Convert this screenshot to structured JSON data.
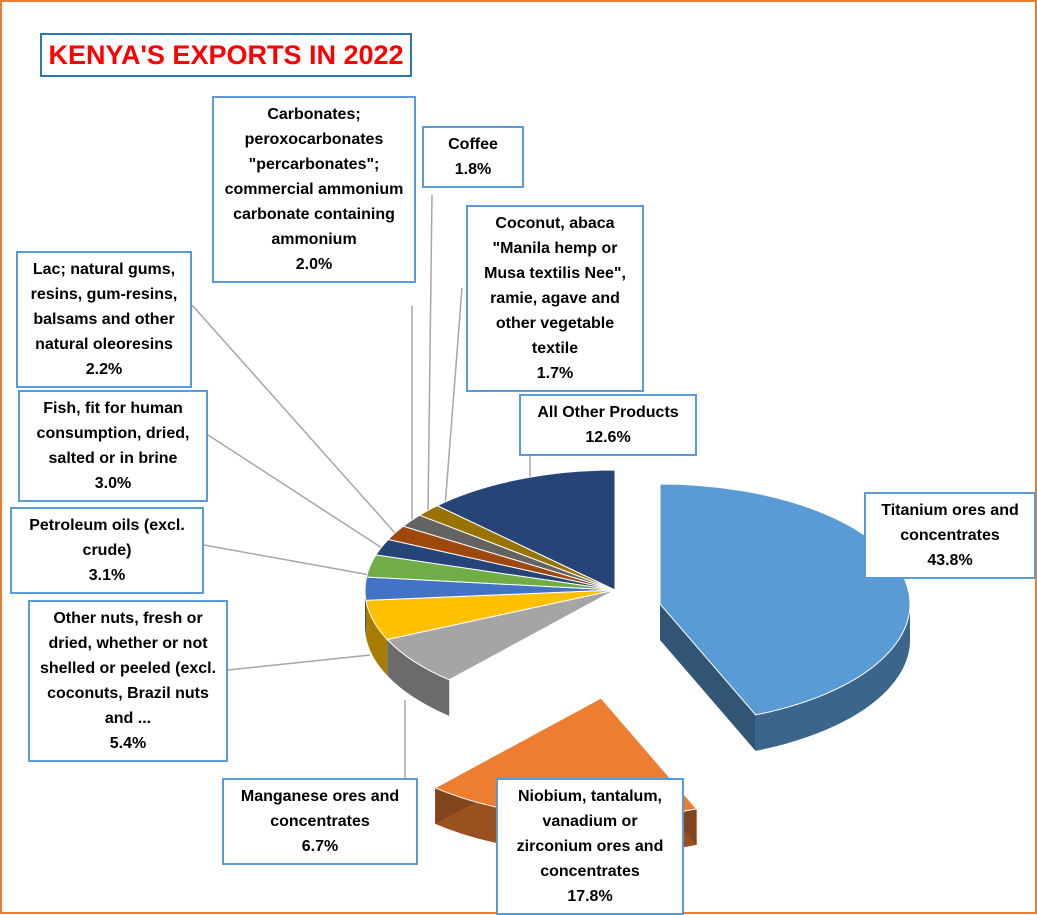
{
  "title": "KENYA'S EXPORTS IN 2022",
  "colors": {
    "frame": "#ED7D31",
    "title_text": "#FF0000",
    "title_border": "#2E75B6",
    "label_border": "#5B9BD5"
  },
  "chart_data": {
    "type": "pie",
    "style": "3d-exploded",
    "title": "KENYA'S EXPORTS IN 2022",
    "slices": [
      {
        "label": "Titanium ores and concentrates",
        "value": 43.8,
        "display": "43.8%",
        "color": "#5B9BD5",
        "exploded": true
      },
      {
        "label": "Niobium, tantalum, vanadium or zirconium ores and concentrates",
        "value": 17.8,
        "display": "17.8%",
        "color": "#ED7D31",
        "exploded": true
      },
      {
        "label": "Manganese ores and concentrates",
        "value": 6.7,
        "display": "6.7%",
        "color": "#A5A5A5"
      },
      {
        "label": "Other nuts, fresh or dried, whether or not shelled or peeled (excl. coconuts, Brazil nuts and ...",
        "value": 5.4,
        "display": "5.4%",
        "color": "#FFC000"
      },
      {
        "label": "Petroleum oils (excl. crude)",
        "value": 3.1,
        "display": "3.1%",
        "color": "#4472C4"
      },
      {
        "label": "Fish, fit for human consumption, dried, salted or in brine",
        "value": 3.0,
        "display": "3.0%",
        "color": "#70AD47"
      },
      {
        "label": "Lac; natural gums, resins, gum-resins, balsams and other natural oleoresins",
        "value": 2.2,
        "display": "2.2%",
        "color": "#264478"
      },
      {
        "label": "Carbonates; peroxocarbonates \"percarbonates\"; commercial ammonium carbonate containing ammonium",
        "value": 2.0,
        "display": "2.0%",
        "color": "#9E480E"
      },
      {
        "label": "Coffee",
        "value": 1.8,
        "display": "1.8%",
        "color": "#636363"
      },
      {
        "label": "Coconut, abaca \"Manila hemp or Musa textilis Nee\", ramie, agave and other vegetable textile",
        "value": 1.7,
        "display": "1.7%",
        "color": "#997300"
      },
      {
        "label": "All Other Products",
        "value": 12.6,
        "display": "12.6%",
        "color": "#264478"
      }
    ],
    "legend": "none"
  }
}
